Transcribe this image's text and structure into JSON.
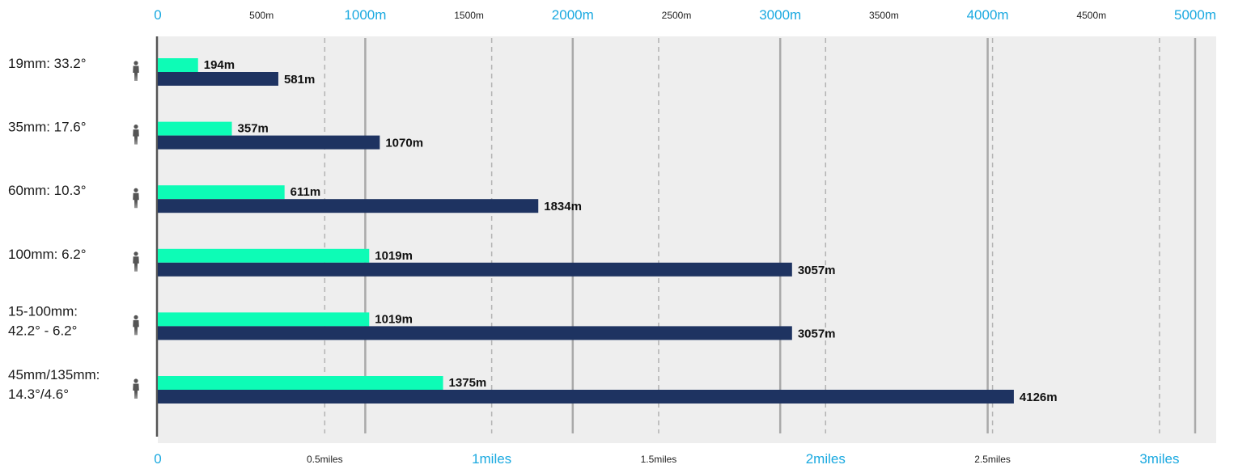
{
  "chart_data": {
    "type": "bar",
    "orientation": "horizontal",
    "categories": [
      [
        "19mm: 33.2°"
      ],
      [
        "35mm: 17.6°"
      ],
      [
        "60mm: 10.3°"
      ],
      [
        "100mm: 6.2°"
      ],
      [
        "15-100mm:",
        "42.2° - 6.2°"
      ],
      [
        "45mm/135mm:",
        "14.3°/4.6°"
      ]
    ],
    "series": [
      {
        "color": "#0dfcb6",
        "values": [
          194,
          357,
          611,
          1019,
          1019,
          1375
        ]
      },
      {
        "color": "#1e3361",
        "values": [
          581,
          1070,
          1834,
          3057,
          3057,
          4126
        ]
      }
    ],
    "value_labels": [
      [
        "194m",
        "581m"
      ],
      [
        "357m",
        "1070m"
      ],
      [
        "611m",
        "1834m"
      ],
      [
        "1019m",
        "3057m"
      ],
      [
        "1019m",
        "3057m"
      ],
      [
        "1375m",
        "4126m"
      ]
    ],
    "top_axis": {
      "unit": "m",
      "range": [
        0,
        5000
      ],
      "ticks": [
        {
          "value": 0,
          "label": "0",
          "major": true
        },
        {
          "value": 500,
          "label": "500m",
          "major": false
        },
        {
          "value": 1000,
          "label": "1000m",
          "major": true
        },
        {
          "value": 1500,
          "label": "1500m",
          "major": false
        },
        {
          "value": 2000,
          "label": "2000m",
          "major": true
        },
        {
          "value": 2500,
          "label": "2500m",
          "major": false
        },
        {
          "value": 3000,
          "label": "3000m",
          "major": true
        },
        {
          "value": 3500,
          "label": "3500m",
          "major": false
        },
        {
          "value": 4000,
          "label": "4000m",
          "major": true
        },
        {
          "value": 4500,
          "label": "4500m",
          "major": false
        },
        {
          "value": 5000,
          "label": "5000m",
          "major": true
        }
      ]
    },
    "bottom_axis": {
      "unit": "miles",
      "meters_per_unit": 1609.34,
      "ticks": [
        {
          "value": 0,
          "label": "0",
          "major": true
        },
        {
          "value": 0.5,
          "label": "0.5miles",
          "major": false
        },
        {
          "value": 1,
          "label": "1miles",
          "major": true
        },
        {
          "value": 1.5,
          "label": "1.5miles",
          "major": false
        },
        {
          "value": 2,
          "label": "2miles",
          "major": true
        },
        {
          "value": 2.5,
          "label": "2.5miles",
          "major": false
        },
        {
          "value": 3,
          "label": "3miles",
          "major": true
        }
      ]
    },
    "gridlines": [
      {
        "value_m": 804.67,
        "style": "dashed"
      },
      {
        "value_m": 1000,
        "style": "solid"
      },
      {
        "value_m": 1609.34,
        "style": "dashed"
      },
      {
        "value_m": 2000,
        "style": "solid"
      },
      {
        "value_m": 2414.01,
        "style": "dashed"
      },
      {
        "value_m": 3000,
        "style": "solid"
      },
      {
        "value_m": 3218.68,
        "style": "dashed"
      },
      {
        "value_m": 4000,
        "style": "solid"
      },
      {
        "value_m": 4023.35,
        "style": "dashed"
      },
      {
        "value_m": 4828.02,
        "style": "dashed"
      },
      {
        "value_m": 5000,
        "style": "solid"
      }
    ],
    "row_icon": "person-silhouette-icon",
    "background_color": "#eeeeee",
    "grid": true,
    "legend": "none"
  }
}
